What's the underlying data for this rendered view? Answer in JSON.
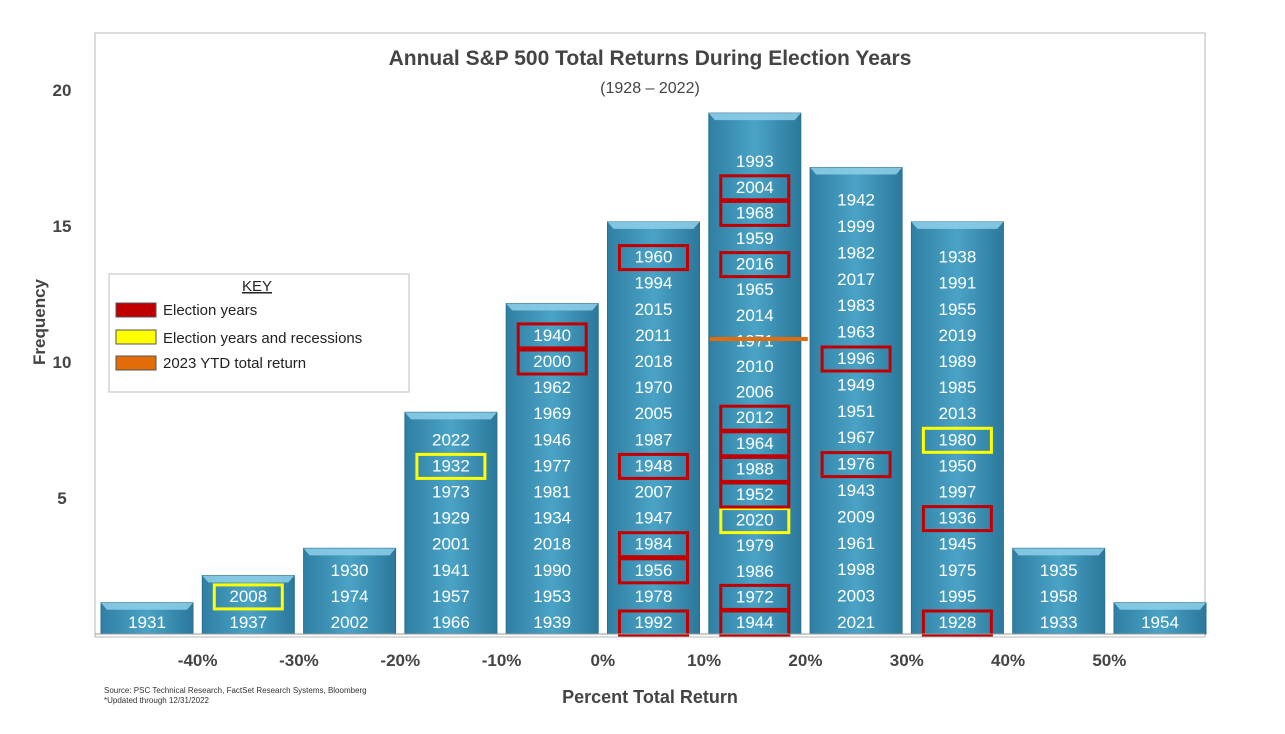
{
  "chart_data": {
    "type": "bar",
    "title": "Annual S&P 500 Total Returns During Election Years",
    "subtitle": "(1928 – 2022)",
    "xlabel": "Percent Total Return",
    "ylabel": "Frequency",
    "ylim": [
      0,
      22
    ],
    "y_ticks": [
      5,
      10,
      15,
      20
    ],
    "x_tick_labels": [
      "-40%",
      "-30%",
      "-20%",
      "-10%",
      "0%",
      "10%",
      "20%",
      "30%",
      "40%",
      "50%"
    ],
    "bar_color": "#3b93b5",
    "bins": [
      {
        "years": [
          "1931"
        ],
        "marks": [
          {
            "year": "1931",
            "type": "none"
          }
        ]
      },
      {
        "years": [
          "1937",
          "2008"
        ]
      },
      {
        "years": [
          "2002",
          "1974",
          "1930"
        ]
      },
      {
        "years": [
          "1966",
          "1957",
          "1941",
          "2001",
          "1929",
          "1973",
          "1932",
          "2022"
        ]
      },
      {
        "years": [
          "1939",
          "1953",
          "1990",
          "2018",
          "1934",
          "1981",
          "1977",
          "1946",
          "1969",
          "1962",
          "2000",
          "1940"
        ]
      },
      {
        "years": [
          "1992",
          "1978",
          "1956",
          "1984",
          "1947",
          "2007",
          "1948",
          "1987",
          "2005",
          "1970",
          "2018",
          "2011",
          "2015",
          "1994",
          "1960"
        ]
      },
      {
        "years": [
          "1944",
          "1972",
          "1986",
          "1979",
          "2020",
          "1952",
          "1988",
          "1964",
          "2012",
          "2006",
          "2010",
          "1971",
          "2014",
          "1965",
          "2016",
          "1959",
          "1968",
          "2004",
          "1993"
        ]
      },
      {
        "years": [
          "2021",
          "2003",
          "1998",
          "1961",
          "2009",
          "1943",
          "1976",
          "1967",
          "1951",
          "1949",
          "1996",
          "1963",
          "1983",
          "2017",
          "1982",
          "1999",
          "1942"
        ]
      },
      {
        "years": [
          "1928",
          "1995",
          "1975",
          "1945",
          "1936",
          "1997",
          "1950",
          "1980",
          "2013",
          "1985",
          "1989",
          "2019",
          "1955",
          "1991",
          "1938"
        ]
      },
      {
        "years": [
          "1933",
          "1958",
          "1935"
        ]
      },
      {
        "years": [
          "1954"
        ]
      }
    ],
    "election_years": [
      "1932",
      "1940",
      "1944",
      "1948",
      "1952",
      "1956",
      "1960",
      "1964",
      "1968",
      "1972",
      "1976",
      "1984",
      "1988",
      "1992",
      "1996",
      "2000",
      "2004",
      "2012",
      "2016",
      "1928",
      "1936"
    ],
    "election_recession_years": [
      "2008",
      "1932",
      "2020",
      "1980"
    ],
    "election_years_outlined": [
      "2000",
      "1940",
      "1992",
      "1956",
      "1984",
      "1948",
      "1960",
      "1944",
      "1972",
      "1952",
      "1988",
      "1964",
      "2012",
      "2016",
      "1968",
      "2004",
      "1976",
      "1996",
      "1928",
      "1936"
    ],
    "election_recession_outlined": [
      "2008",
      "1932",
      "2020",
      "1980"
    ],
    "ytd_2023_marker": {
      "bin_index": 6,
      "frequency_level": 10.4
    },
    "legend": {
      "title": "KEY",
      "placement": "left",
      "items": [
        {
          "label": "Election years",
          "color": "#c00000"
        },
        {
          "label": "Election years and recessions",
          "color": "#ffff00"
        },
        {
          "label": "2023 YTD total return",
          "color": "#e36c09"
        }
      ]
    },
    "colors": {
      "election": "#c00000",
      "recession": "#ffff00",
      "ytd": "#e36c09"
    }
  },
  "source_lines": [
    "Source: PSC Technical Research, FactSet Research Systems, Bloomberg",
    "*Updated through 12/31/2022"
  ]
}
